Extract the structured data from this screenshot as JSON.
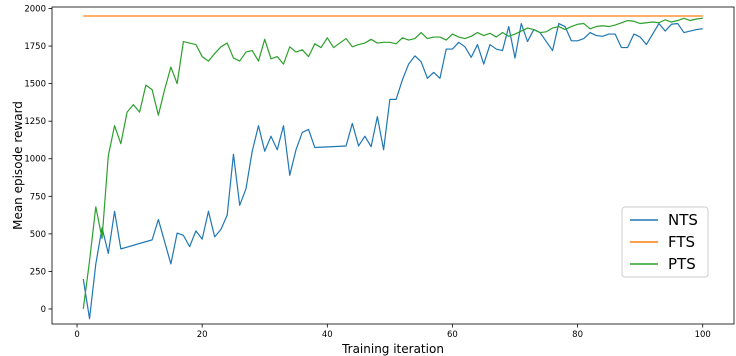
{
  "chart_data": {
    "type": "line",
    "title": "",
    "xlabel": "Training iteration",
    "ylabel": "Mean episode reward",
    "xlim": [
      -4,
      105
    ],
    "ylim": [
      -100,
      2010
    ],
    "xticks": [
      0,
      20,
      40,
      60,
      80,
      100
    ],
    "yticks": [
      0,
      250,
      500,
      750,
      1000,
      1250,
      1500,
      1750,
      2000
    ],
    "grid": false,
    "legend_position": "center-right",
    "series": [
      {
        "name": "NTS",
        "color": "#1f77b4",
        "x": [
          1,
          2,
          3,
          4,
          5,
          6,
          7,
          12,
          13,
          15,
          16,
          17,
          18,
          19,
          20,
          21,
          22,
          23,
          24,
          25,
          26,
          27,
          28,
          29,
          30,
          31,
          32,
          33,
          34,
          35,
          36,
          37,
          38,
          43,
          44,
          45,
          46,
          47,
          48,
          49,
          50,
          51,
          52,
          53,
          54,
          55,
          56,
          57,
          58,
          59,
          60,
          61,
          62,
          63,
          64,
          65,
          66,
          67,
          68,
          69,
          70,
          71,
          72,
          73,
          74,
          75,
          76,
          77,
          78,
          79,
          80,
          81,
          82,
          83,
          84,
          85,
          86,
          87,
          88,
          89,
          90,
          91,
          92,
          93,
          94,
          95,
          96,
          97,
          98,
          99,
          100
        ],
        "values": [
          200,
          -65,
          300,
          540,
          370,
          650,
          400,
          460,
          595,
          300,
          505,
          490,
          415,
          520,
          465,
          650,
          480,
          530,
          625,
          1030,
          690,
          800,
          1050,
          1220,
          1050,
          1150,
          1060,
          1220,
          890,
          1060,
          1175,
          1195,
          1075,
          1085,
          1235,
          1085,
          1150,
          1080,
          1280,
          1060,
          1395,
          1395,
          1525,
          1630,
          1685,
          1645,
          1535,
          1575,
          1535,
          1730,
          1730,
          1775,
          1745,
          1675,
          1760,
          1630,
          1760,
          1730,
          1720,
          1880,
          1670,
          1900,
          1780,
          1860,
          1840,
          1780,
          1720,
          1900,
          1880,
          1785,
          1785,
          1800,
          1840,
          1820,
          1815,
          1830,
          1830,
          1740,
          1740,
          1830,
          1810,
          1760,
          1830,
          1900,
          1850,
          1895,
          1900,
          1840,
          1850,
          1860,
          1865
        ]
      },
      {
        "name": "FTS",
        "color": "#ff7f0e",
        "x": [
          1,
          100
        ],
        "values": [
          1950,
          1950
        ]
      },
      {
        "name": "PTS",
        "color": "#2ca02c",
        "x": [
          1,
          2,
          3,
          4,
          5,
          6,
          7,
          8,
          9,
          10,
          11,
          12,
          13,
          14,
          15,
          16,
          17,
          18,
          19,
          20,
          21,
          22,
          23,
          24,
          25,
          26,
          27,
          28,
          29,
          30,
          31,
          32,
          33,
          34,
          35,
          36,
          37,
          38,
          39,
          40,
          41,
          42,
          43,
          44,
          45,
          46,
          47,
          48,
          49,
          50,
          51,
          52,
          53,
          54,
          55,
          56,
          57,
          58,
          59,
          60,
          61,
          62,
          63,
          64,
          65,
          66,
          67,
          68,
          69,
          70,
          71,
          72,
          73,
          74,
          75,
          76,
          77,
          78,
          79,
          80,
          81,
          82,
          83,
          84,
          85,
          86,
          87,
          88,
          89,
          90,
          91,
          92,
          93,
          94,
          95,
          96,
          97,
          98,
          99,
          100
        ],
        "values": [
          0,
          320,
          680,
          470,
          1020,
          1220,
          1100,
          1310,
          1360,
          1310,
          1490,
          1460,
          1290,
          1460,
          1610,
          1500,
          1780,
          1770,
          1760,
          1680,
          1650,
          1700,
          1745,
          1770,
          1670,
          1650,
          1710,
          1720,
          1650,
          1795,
          1665,
          1680,
          1630,
          1745,
          1710,
          1725,
          1680,
          1765,
          1740,
          1805,
          1740,
          1770,
          1800,
          1745,
          1760,
          1770,
          1795,
          1770,
          1775,
          1775,
          1765,
          1805,
          1790,
          1800,
          1840,
          1800,
          1810,
          1810,
          1790,
          1830,
          1810,
          1800,
          1815,
          1840,
          1820,
          1835,
          1810,
          1840,
          1815,
          1830,
          1850,
          1870,
          1860,
          1840,
          1845,
          1870,
          1880,
          1860,
          1880,
          1895,
          1900,
          1865,
          1880,
          1885,
          1880,
          1890,
          1905,
          1920,
          1915,
          1900,
          1905,
          1910,
          1905,
          1925,
          1910,
          1920,
          1935,
          1920,
          1930,
          1935
        ]
      }
    ]
  }
}
